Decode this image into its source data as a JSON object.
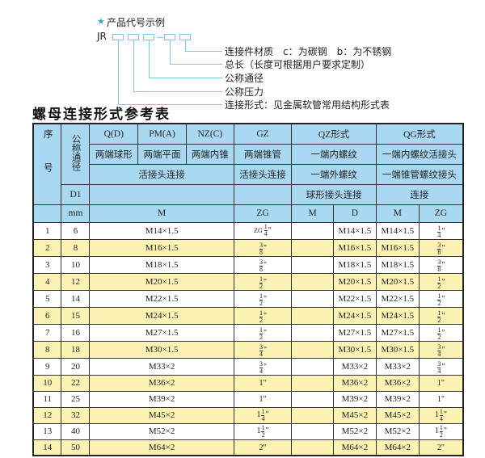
{
  "example": {
    "star": "★",
    "caption": "产品代号示例",
    "code_prefix": "JR",
    "labels": [
      "连接件材质　c：为碳钢　b：为不锈钢",
      "总长（长度可根据用户要求定制）",
      "公称通径",
      "公称压力",
      "连接形式：见金属软管常用结构形式表"
    ]
  },
  "title": "螺母连接形式参考表",
  "header": {
    "seq": "序号",
    "dn": "公称通径",
    "d1": "D1",
    "mm": "mm",
    "types": [
      "Q(D)",
      "PM(A)",
      "NZ(C)",
      "GZ",
      "QZ形式",
      "QG形式"
    ],
    "row2": [
      "两端球形",
      "两端平面",
      "两端内锥",
      "两端锥管",
      "一端内螺纹",
      "一端内螺纹活接头"
    ],
    "row3": [
      "活接头连接",
      "活接头连接",
      "一端外螺纹",
      "一端锥管螺纹接头"
    ],
    "row4": [
      "",
      "",
      "球形接头连接",
      "连接"
    ],
    "units": [
      "M",
      "ZG",
      "M",
      "D",
      "M",
      "ZG"
    ]
  },
  "rows": [
    {
      "no": "1",
      "dn": "6",
      "m": "M14×1.5",
      "zg": {
        "pre": "ZG",
        "w": "",
        "n": "1",
        "d": "4"
      },
      "qz_m": "",
      "qz_d": "M14×1.5",
      "qg_m": "M14×1.5",
      "qg_zg": {
        "w": "",
        "n": "1",
        "d": "4"
      }
    },
    {
      "no": "2",
      "dn": "8",
      "m": "M16×1.5",
      "zg": {
        "w": "",
        "n": "3",
        "d": "8"
      },
      "qz_m": "",
      "qz_d": "M16×1.5",
      "qg_m": "M16×1.5",
      "qg_zg": {
        "w": "",
        "n": "3",
        "d": "8"
      }
    },
    {
      "no": "3",
      "dn": "10",
      "m": "M18×1.5",
      "zg": {
        "w": "",
        "n": "3",
        "d": "8"
      },
      "qz_m": "",
      "qz_d": "M18×1.5",
      "qg_m": "M18×1.5",
      "qg_zg": {
        "w": "",
        "n": "3",
        "d": "8"
      }
    },
    {
      "no": "4",
      "dn": "12",
      "m": "M20×1.5",
      "zg": {
        "w": "",
        "n": "1",
        "d": "2"
      },
      "qz_m": "",
      "qz_d": "M20×1.5",
      "qg_m": "M20×1.5",
      "qg_zg": {
        "w": "",
        "n": "1",
        "d": "2"
      }
    },
    {
      "no": "5",
      "dn": "14",
      "m": "M22×1.5",
      "zg": {
        "w": "",
        "n": "1",
        "d": "2"
      },
      "qz_m": "",
      "qz_d": "M22×1.5",
      "qg_m": "M22×1.5",
      "qg_zg": {
        "w": "",
        "n": "1",
        "d": "2"
      }
    },
    {
      "no": "6",
      "dn": "15",
      "m": "M24×1.5",
      "zg": {
        "w": "",
        "n": "1",
        "d": "2"
      },
      "qz_m": "",
      "qz_d": "M24×1.5",
      "qg_m": "M24×1.5",
      "qg_zg": {
        "w": "",
        "n": "1",
        "d": "2"
      }
    },
    {
      "no": "7",
      "dn": "16",
      "m": "M27×1.5",
      "zg": {
        "w": "",
        "n": "1",
        "d": "2"
      },
      "qz_m": "",
      "qz_d": "M27×1.5",
      "qg_m": "M27×1.5",
      "qg_zg": {
        "w": "",
        "n": "1",
        "d": "2"
      }
    },
    {
      "no": "8",
      "dn": "18",
      "m": "M30×1.5",
      "zg": {
        "w": "",
        "n": "3",
        "d": "4"
      },
      "qz_m": "",
      "qz_d": "M30×1.5",
      "qg_m": "M30×1.5",
      "qg_zg": {
        "w": "",
        "n": "3",
        "d": "4"
      }
    },
    {
      "no": "9",
      "dn": "20",
      "m": "M33×2",
      "zg": {
        "w": "",
        "n": "3",
        "d": "4"
      },
      "qz_m": "",
      "qz_d": "M33×2",
      "qg_m": "M33×2",
      "qg_zg": {
        "w": "",
        "n": "3",
        "d": "4"
      }
    },
    {
      "no": "10",
      "dn": "22",
      "m": "M36×2",
      "zg": {
        "w": "1"
      },
      "qz_m": "",
      "qz_d": "M36×2",
      "qg_m": "M36×2",
      "qg_zg": {
        "w": "1"
      }
    },
    {
      "no": "11",
      "dn": "25",
      "m": "M39×2",
      "zg": {
        "w": "1"
      },
      "qz_m": "",
      "qz_d": "M39×2",
      "qg_m": "M39×2",
      "qg_zg": {
        "w": "1"
      }
    },
    {
      "no": "12",
      "dn": "32",
      "m": "M45×2",
      "zg": {
        "w": "1",
        "n": "1",
        "d": "4"
      },
      "qz_m": "",
      "qz_d": "M45×2",
      "qg_m": "M45×2",
      "qg_zg": {
        "w": "1",
        "n": "1",
        "d": "4"
      }
    },
    {
      "no": "13",
      "dn": "40",
      "m": "M52×2",
      "zg": {
        "w": "1",
        "n": "1",
        "d": "2"
      },
      "qz_m": "",
      "qz_d": "M52×2",
      "qg_m": "M52×2",
      "qg_zg": {
        "w": "1",
        "n": "1",
        "d": "2"
      }
    },
    {
      "no": "14",
      "dn": "50",
      "m": "M64×2",
      "zg": {
        "w": "2"
      },
      "qz_m": "",
      "qz_d": "M64×2",
      "qg_m": "M64×2",
      "qg_zg": {
        "w": "2"
      }
    }
  ],
  "colors": {
    "header_bg": "#a9d9f2",
    "alt_row_bg": "#fbf2b3",
    "accent": "#2aa7d8"
  }
}
